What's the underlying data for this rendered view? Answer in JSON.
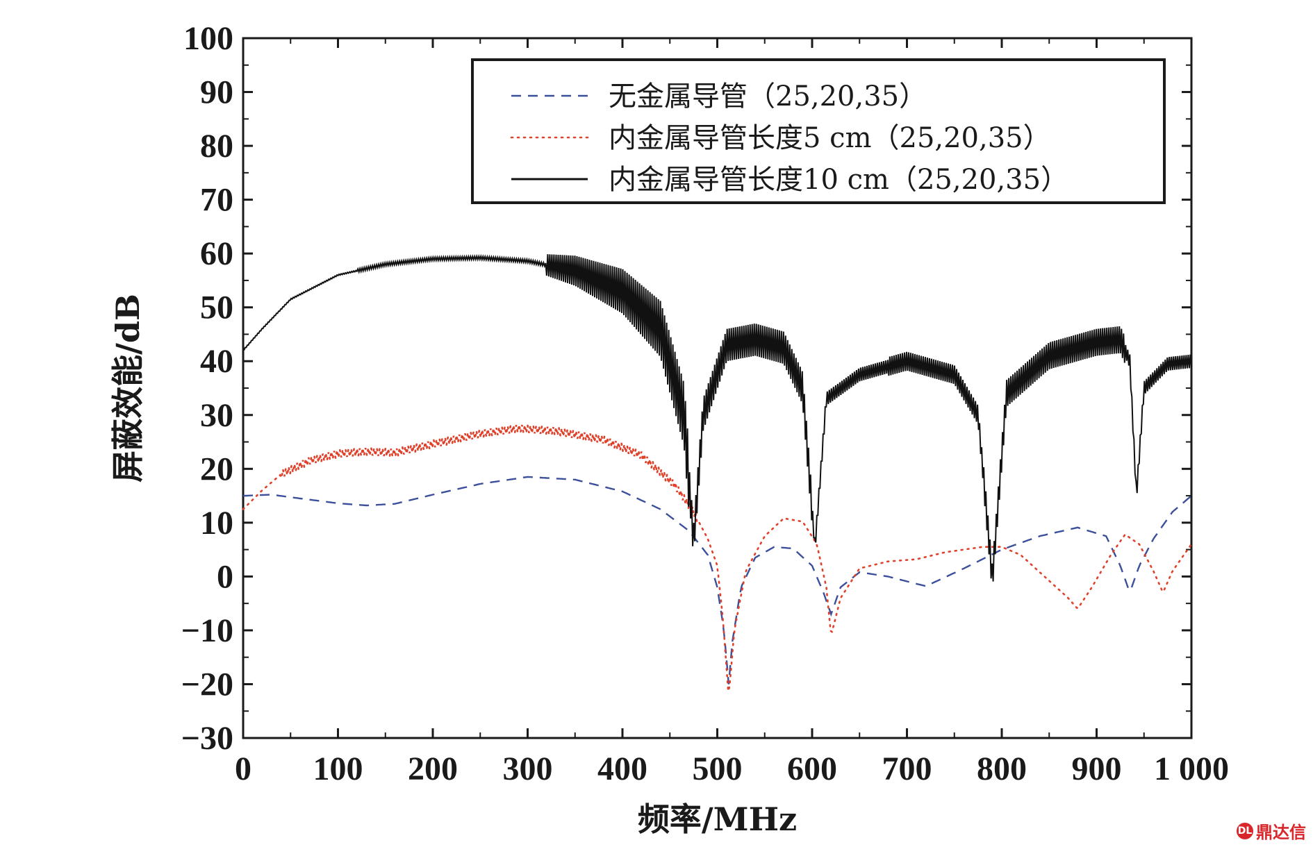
{
  "chart_data": {
    "type": "line",
    "xlabel": "频率/MHz",
    "ylabel": "屏蔽效能/dB",
    "xlim": [
      0,
      1000
    ],
    "ylim": [
      -30,
      100
    ],
    "x_ticks": [
      0,
      100,
      200,
      300,
      400,
      500,
      600,
      700,
      800,
      900,
      1000
    ],
    "x_tick_labels": [
      "0",
      "100",
      "200",
      "300",
      "400",
      "500",
      "600",
      "700",
      "800",
      "900",
      "1 000"
    ],
    "y_ticks": [
      -30,
      -20,
      -10,
      0,
      10,
      20,
      30,
      40,
      50,
      60,
      70,
      80,
      90,
      100
    ],
    "y_tick_labels": [
      "−30",
      "−20",
      "−10",
      "0",
      "10",
      "20",
      "30",
      "40",
      "50",
      "60",
      "70",
      "80",
      "90",
      "100"
    ],
    "grid": false,
    "legend_position": "top-right",
    "series": [
      {
        "name": "无金属导管（25,20,35）",
        "color": "#3b4f9a",
        "style": "dashed",
        "points": [
          [
            0,
            15
          ],
          [
            30,
            15.2
          ],
          [
            60,
            14.5
          ],
          [
            100,
            13.6
          ],
          [
            130,
            13.2
          ],
          [
            160,
            13.5
          ],
          [
            200,
            15.2
          ],
          [
            250,
            17.2
          ],
          [
            300,
            18.5
          ],
          [
            350,
            18
          ],
          [
            400,
            15.8
          ],
          [
            440,
            12.5
          ],
          [
            470,
            8.5
          ],
          [
            490,
            4
          ],
          [
            500,
            -2
          ],
          [
            507,
            -10
          ],
          [
            512,
            -20
          ],
          [
            516,
            -12
          ],
          [
            525,
            -2
          ],
          [
            540,
            3.5
          ],
          [
            560,
            5.5
          ],
          [
            580,
            5.2
          ],
          [
            600,
            2
          ],
          [
            612,
            -3
          ],
          [
            620,
            -7
          ],
          [
            630,
            -2
          ],
          [
            650,
            0.8
          ],
          [
            680,
            0
          ],
          [
            720,
            -1.8
          ],
          [
            760,
            1.5
          ],
          [
            800,
            5
          ],
          [
            840,
            7.5
          ],
          [
            880,
            9.1
          ],
          [
            910,
            7.5
          ],
          [
            925,
            2
          ],
          [
            935,
            -3
          ],
          [
            945,
            2
          ],
          [
            960,
            7
          ],
          [
            980,
            12
          ],
          [
            1000,
            15
          ]
        ]
      },
      {
        "name": "内金属导管长度5 cm（25,20,35）",
        "color": "#e0412b",
        "style": "dotted",
        "points": [
          [
            0,
            12.5
          ],
          [
            20,
            16
          ],
          [
            40,
            19
          ],
          [
            70,
            21.5
          ],
          [
            100,
            22.8
          ],
          [
            130,
            23.2
          ],
          [
            160,
            23
          ],
          [
            200,
            24.6
          ],
          [
            250,
            26.5
          ],
          [
            290,
            27.5
          ],
          [
            330,
            27
          ],
          [
            380,
            25.4
          ],
          [
            420,
            22.5
          ],
          [
            455,
            17
          ],
          [
            475,
            12
          ],
          [
            490,
            7
          ],
          [
            500,
            2
          ],
          [
            506,
            -8
          ],
          [
            512,
            -22.5
          ],
          [
            518,
            -10
          ],
          [
            530,
            1
          ],
          [
            550,
            7.5
          ],
          [
            570,
            10.8
          ],
          [
            590,
            10.2
          ],
          [
            605,
            6
          ],
          [
            615,
            -2
          ],
          [
            620,
            -11
          ],
          [
            630,
            -4
          ],
          [
            650,
            1.5
          ],
          [
            680,
            2.8
          ],
          [
            710,
            3.2
          ],
          [
            740,
            4.5
          ],
          [
            780,
            5.5
          ],
          [
            800,
            5.5
          ],
          [
            820,
            4
          ],
          [
            845,
            0
          ],
          [
            870,
            -4
          ],
          [
            880,
            -6
          ],
          [
            895,
            -2
          ],
          [
            915,
            4
          ],
          [
            930,
            7.8
          ],
          [
            945,
            6
          ],
          [
            960,
            1
          ],
          [
            970,
            -3
          ],
          [
            980,
            1
          ],
          [
            1000,
            6
          ]
        ]
      },
      {
        "name": "内金属导管长度10 cm（25,20,35）",
        "color": "#111111",
        "style": "solid",
        "points": [
          [
            0,
            42
          ],
          [
            20,
            46
          ],
          [
            50,
            51.5
          ],
          [
            100,
            56
          ],
          [
            150,
            58
          ],
          [
            200,
            59
          ],
          [
            250,
            59.2
          ],
          [
            300,
            58.6
          ],
          [
            350,
            56.8
          ],
          [
            400,
            53
          ],
          [
            440,
            46
          ],
          [
            465,
            30
          ],
          [
            475,
            6.5
          ],
          [
            485,
            30
          ],
          [
            510,
            43
          ],
          [
            540,
            44
          ],
          [
            570,
            42.5
          ],
          [
            590,
            35
          ],
          [
            603,
            5.5
          ],
          [
            615,
            33
          ],
          [
            650,
            37.5
          ],
          [
            700,
            40
          ],
          [
            750,
            37.5
          ],
          [
            775,
            30
          ],
          [
            790,
            -0.5
          ],
          [
            805,
            34
          ],
          [
            850,
            41
          ],
          [
            900,
            43.5
          ],
          [
            925,
            44
          ],
          [
            935,
            40
          ],
          [
            942,
            15
          ],
          [
            950,
            35
          ],
          [
            975,
            39.5
          ],
          [
            1000,
            40
          ]
        ]
      }
    ]
  },
  "watermark": {
    "logo_text": "DL",
    "text": "鼎达信"
  }
}
